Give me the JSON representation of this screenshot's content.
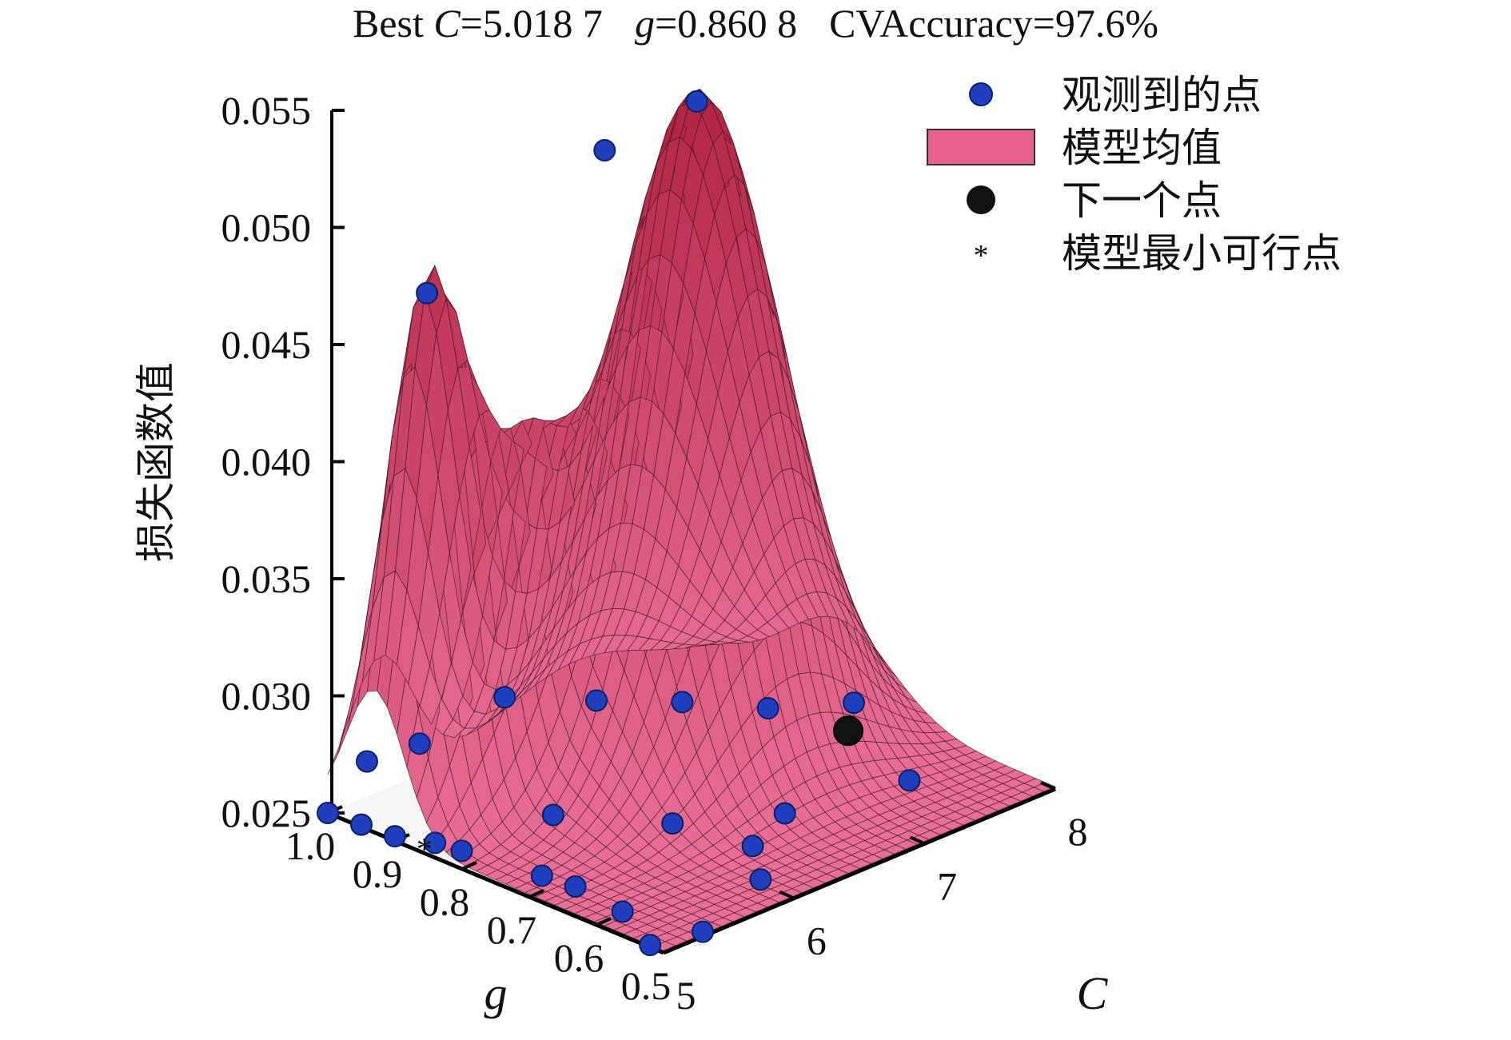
{
  "chart_data": {
    "type": "surface3d",
    "title": {
      "prefix": "Best ",
      "c_symbol": "C",
      "c_value": "=5.018 7",
      "g_symbol": "g",
      "g_value": "=0.860 8",
      "accuracy": "CVAccuracy=97.6%"
    },
    "zlabel": "损失函数值",
    "xlabel": "C",
    "ylabel": "g",
    "zlim": [
      0.025,
      0.055
    ],
    "xlim": [
      5,
      8
    ],
    "ylim": [
      0.5,
      1.0
    ],
    "z_ticks": [
      "0.025",
      "0.030",
      "0.035",
      "0.040",
      "0.045",
      "0.050",
      "0.055"
    ],
    "x_ticks": [
      "5",
      "6",
      "7",
      "8"
    ],
    "y_ticks": [
      "1.0",
      "0.9",
      "0.8",
      "0.7",
      "0.6",
      "0.5"
    ],
    "legend": [
      {
        "label": "观测到的点",
        "marker": "blue-dot",
        "color": "#1f3fbf"
      },
      {
        "label": "模型均值",
        "marker": "pink-rect",
        "color": "#e8608f"
      },
      {
        "label": "下一个点",
        "marker": "black-dot",
        "color": "#111111"
      },
      {
        "label": "模型最小可行点",
        "marker": "asterisk",
        "color": "#b0306a"
      }
    ],
    "observed_points": [
      {
        "C": 5.0,
        "g": 1.0,
        "loss": 0.025
      },
      {
        "C": 5.3,
        "g": 1.0,
        "loss": 0.0265
      },
      {
        "C": 5.6,
        "g": 0.98,
        "loss": 0.0268
      },
      {
        "C": 6.2,
        "g": 0.97,
        "loss": 0.0275
      },
      {
        "C": 6.8,
        "g": 0.95,
        "loss": 0.0262
      },
      {
        "C": 7.2,
        "g": 0.9,
        "loss": 0.0258
      },
      {
        "C": 7.6,
        "g": 0.85,
        "loss": 0.0252
      },
      {
        "C": 8.0,
        "g": 0.8,
        "loss": 0.0251
      },
      {
        "C": 5.0,
        "g": 0.95,
        "loss": 0.0251
      },
      {
        "C": 5.0,
        "g": 0.9,
        "loss": 0.0252
      },
      {
        "C": 5.05,
        "g": 0.85,
        "loss": 0.0254
      },
      {
        "C": 5.1,
        "g": 0.82,
        "loss": 0.0253
      },
      {
        "C": 5.2,
        "g": 0.72,
        "loss": 0.0252
      },
      {
        "C": 5.25,
        "g": 0.68,
        "loss": 0.0251
      },
      {
        "C": 5.2,
        "g": 0.6,
        "loss": 0.0251
      },
      {
        "C": 5.0,
        "g": 0.52,
        "loss": 0.0251
      },
      {
        "C": 5.3,
        "g": 0.5,
        "loss": 0.0252
      },
      {
        "C": 6.0,
        "g": 0.55,
        "loss": 0.0252
      },
      {
        "C": 6.3,
        "g": 0.62,
        "loss": 0.0251
      },
      {
        "C": 6.7,
        "g": 0.65,
        "loss": 0.0252
      },
      {
        "C": 6.2,
        "g": 0.72,
        "loss": 0.0251
      },
      {
        "C": 5.8,
        "g": 0.82,
        "loss": 0.0252
      },
      {
        "C": 7.5,
        "g": 0.62,
        "loss": 0.0251
      },
      {
        "C": 5.4,
        "g": 0.93,
        "loss": 0.0471
      },
      {
        "C": 6.9,
        "g": 0.82,
        "loss": 0.0531
      },
      {
        "C": 6.4,
        "g": 0.86,
        "loss": 0.0517
      }
    ],
    "next_point": {
      "C": 7.7,
      "g": 0.75,
      "loss": 0.0252
    },
    "min_feasible_point": {
      "C": 5.02,
      "g": 0.86,
      "loss": 0.0251
    }
  }
}
